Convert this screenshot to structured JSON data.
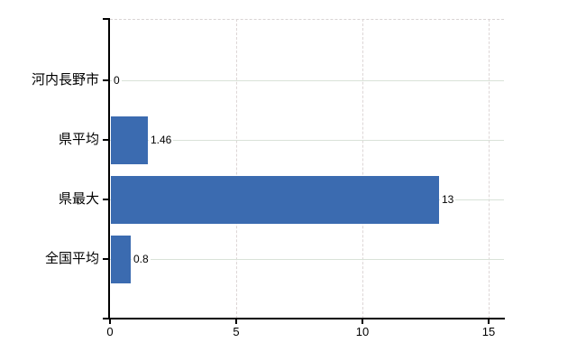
{
  "chart_data": {
    "type": "bar",
    "orientation": "horizontal",
    "title": "",
    "categories": [
      "河内長野市",
      "県平均",
      "県最大",
      "全国平均"
    ],
    "values": [
      0,
      1.46,
      13,
      0.8
    ],
    "value_labels": [
      "0",
      "1.46",
      "13",
      "0.8"
    ],
    "x_ticks": [
      0,
      5,
      10,
      15
    ],
    "x_tick_labels": [
      "0",
      "5",
      "10",
      "15"
    ],
    "xlim": [
      0,
      15.6
    ],
    "grid": true,
    "legend": false,
    "colors": {
      "bar": "#3b6bb0",
      "vertical_gridline": "#ddd6d6",
      "horizontal_gridline": "#d9e2d8",
      "axis": "#000000",
      "text": "#000000",
      "background": "#ffffff"
    }
  }
}
